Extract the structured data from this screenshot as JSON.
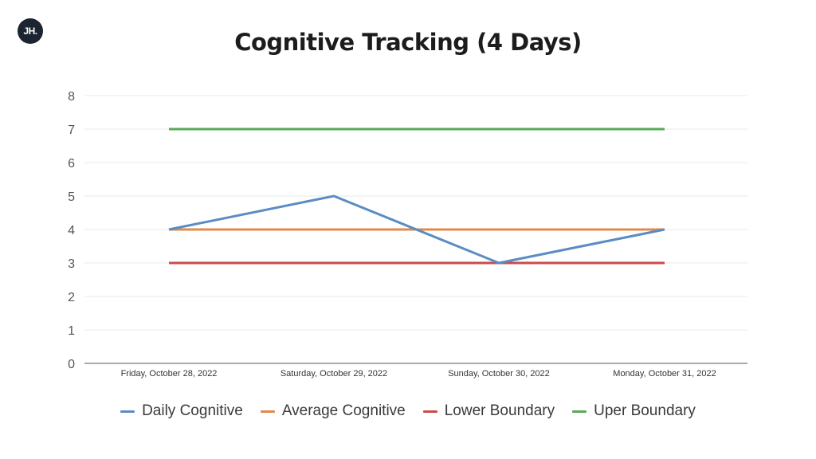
{
  "logo": {
    "text": "JH."
  },
  "colors": {
    "daily": "#5b8cc1",
    "average": "#e08a4e",
    "lower": "#cc4b4b",
    "upper": "#56ab58",
    "grid": "#e8e8e8",
    "axis": "#555555"
  },
  "chart_data": {
    "type": "line",
    "title": "Cognitive Tracking (4 Days)",
    "categories": [
      "Friday, October 28, 2022",
      "Saturday, October 29, 2022",
      "Sunday, October 30, 2022",
      "Monday, October 31, 2022"
    ],
    "ylim": [
      0,
      8
    ],
    "yticks": [
      0,
      1,
      2,
      3,
      4,
      5,
      6,
      7,
      8
    ],
    "grid": true,
    "legend_position": "bottom",
    "series": [
      {
        "name": "Daily Cognitive",
        "color": "#5b8cc1",
        "values": [
          4,
          5,
          3,
          4
        ]
      },
      {
        "name": "Average Cognitive",
        "color": "#e08a4e",
        "values": [
          4,
          4,
          4,
          4
        ]
      },
      {
        "name": "Lower Boundary",
        "color": "#cc4b4b",
        "values": [
          3,
          3,
          3,
          3
        ]
      },
      {
        "name": "Uper Boundary",
        "color": "#56ab58",
        "values": [
          7,
          7,
          7,
          7
        ]
      }
    ]
  }
}
